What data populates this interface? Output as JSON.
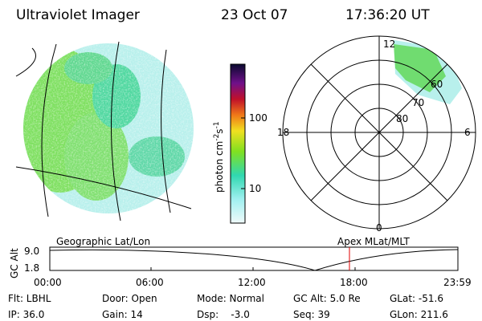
{
  "header": {
    "title": "Ultraviolet Imager",
    "date": "23 Oct 07",
    "time": "17:36:20 UT"
  },
  "colorbar": {
    "label": {
      "unit": "photon cm",
      "exp1": "-2",
      "unit2": "s",
      "exp2": "-1"
    },
    "ticks": [
      "100",
      "10"
    ]
  },
  "polar": {
    "mlt_labels": [
      "12",
      "18",
      "6",
      "0"
    ],
    "mlat_labels": [
      "80",
      "70",
      "60"
    ]
  },
  "altitude_panel": {
    "left_label": "Geographic Lat/Lon",
    "right_label": "Apex MLat/MLT",
    "axis_label": "GC Alt",
    "y_ticks": [
      "9.0",
      "1.8"
    ],
    "x_ticks": [
      "00:00",
      "06:00",
      "12:00",
      "18:00",
      "23:59"
    ]
  },
  "info": [
    [
      "Flt: LBHL",
      "Door: Open",
      "Mode: Normal",
      "GC Alt: 5.0 Re",
      "GLat: -51.6"
    ],
    [
      "IP: 36.0",
      "Gain: 14",
      "Dsp:    -3.0",
      "Seq: 39",
      "GLon: 211.6"
    ]
  ]
}
